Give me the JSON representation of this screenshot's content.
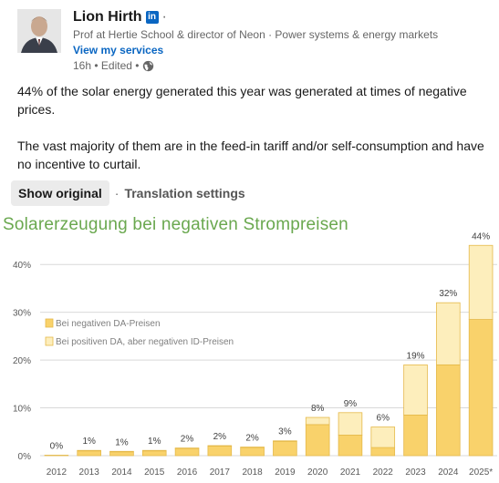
{
  "post": {
    "author_name": "Lion Hirth",
    "linkedin_badge": "in",
    "separator": "·",
    "headline": "Prof at Hertie School & director of Neon · Power systems & energy markets",
    "services_link": "View my services",
    "meta_text": "16h • Edited •",
    "paragraphs": [
      "44% of the solar energy generated this year was generated at times of negative prices.",
      "The vast majority of them are in the feed-in tariff and/or self-consumption and have no incentive to curtail."
    ],
    "show_original": "Show original",
    "translate_sep": "·",
    "translation_settings": "Translation settings",
    "icons": {
      "globe": "globe-icon",
      "linkedin": "linkedin-icon",
      "avatar": "avatar"
    }
  },
  "chart_data": {
    "type": "bar",
    "title": "Solarerzeugung bei negativen Strompreisen",
    "categories": [
      "2012",
      "2013",
      "2014",
      "2015",
      "2016",
      "2017",
      "2018",
      "2019",
      "2020",
      "2021",
      "2022",
      "2023",
      "2024",
      "2025*"
    ],
    "series": [
      {
        "name": "Bei negativen DA-Preisen",
        "color": "#f9d26b",
        "values": [
          0,
          1,
          0.8,
          1,
          1.5,
          2,
          1.7,
          3,
          6.5,
          4.3,
          1.7,
          8.5,
          19,
          28.5
        ]
      },
      {
        "name": "Bei positiven DA, aber negativen ID-Preisen",
        "color": "#fdeebc",
        "values": [
          0.1,
          0.1,
          0.1,
          0.1,
          0.1,
          0.1,
          0.1,
          0.1,
          1.5,
          4.7,
          4.3,
          10.5,
          13,
          15.5
        ]
      }
    ],
    "totals_labels": [
      "0%",
      "1%",
      "1%",
      "1%",
      "2%",
      "2%",
      "2%",
      "3%",
      "8%",
      "9%",
      "6%",
      "19%",
      "32%",
      "44%"
    ],
    "ylim": [
      0,
      45
    ],
    "yticks": [
      0,
      10,
      20,
      30,
      40
    ],
    "ytick_labels": [
      "0%",
      "10%",
      "20%",
      "30%",
      "40%"
    ],
    "grid": true,
    "legend_placement": "upper-left",
    "colors": {
      "title": "#6aa84f",
      "grid": "#d9d9d9",
      "bar_edge": "#e5b94a",
      "axis_text": "#595959"
    }
  }
}
